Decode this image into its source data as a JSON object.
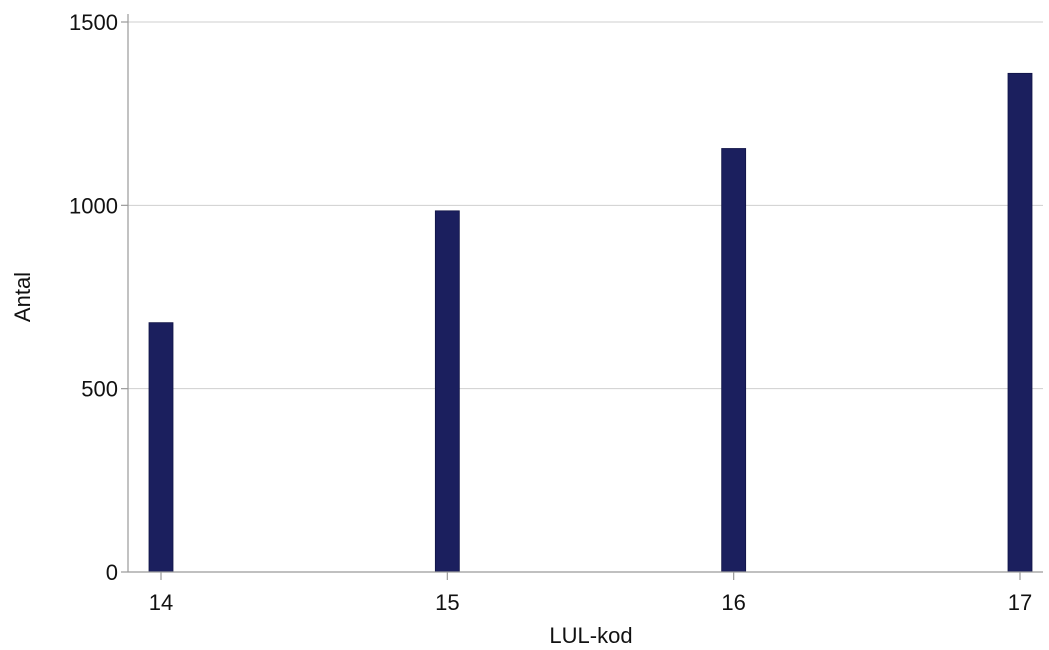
{
  "chart_data": {
    "type": "bar",
    "xlabel": "LUL-kod",
    "ylabel": "Antal",
    "x_ticks": [
      "14",
      "15",
      "16",
      "17"
    ],
    "x_range": [
      14,
      17
    ],
    "ylim": [
      0,
      1500
    ],
    "y_ticks": [
      0,
      500,
      1000,
      1500
    ],
    "y_tick_labels": [
      "0",
      "500",
      "1000",
      "1500"
    ],
    "grid": "horizontal",
    "bar_color": "#1b1f5e",
    "series": [
      {
        "points": [
          {
            "x": 14,
            "value": 680
          },
          {
            "x": 15,
            "value": 985
          },
          {
            "x": 16,
            "value": 1155
          },
          {
            "x": 17,
            "value": 1360
          }
        ]
      }
    ]
  }
}
